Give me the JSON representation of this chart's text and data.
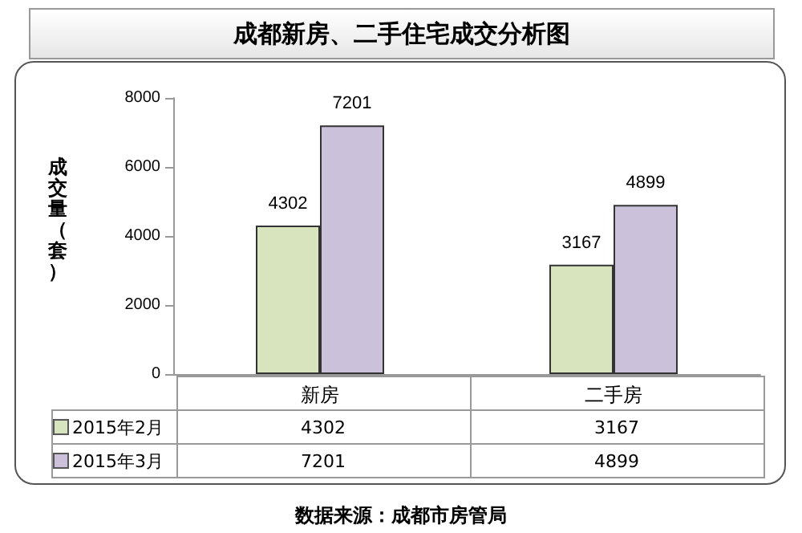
{
  "chart_data": {
    "type": "bar",
    "title": "成都新房、二手住宅成交分析图",
    "ylabel": "成交量（套）",
    "categories": [
      "新房",
      "二手房"
    ],
    "series": [
      {
        "name": "2015年2月",
        "color": "#d7e4bd",
        "values": [
          4302,
          3167
        ],
        "value_labels": [
          "4302",
          "3167"
        ]
      },
      {
        "name": "2015年3月",
        "color": "#ccc1da",
        "values": [
          7201,
          4899
        ],
        "value_labels": [
          "7201",
          "4899"
        ]
      }
    ],
    "ylim": [
      0,
      8000
    ],
    "yticks": [
      0,
      2000,
      4000,
      6000,
      8000
    ],
    "grid": false,
    "legend": "bottom",
    "annotations": [
      "数据来源：成都市房管局"
    ]
  }
}
